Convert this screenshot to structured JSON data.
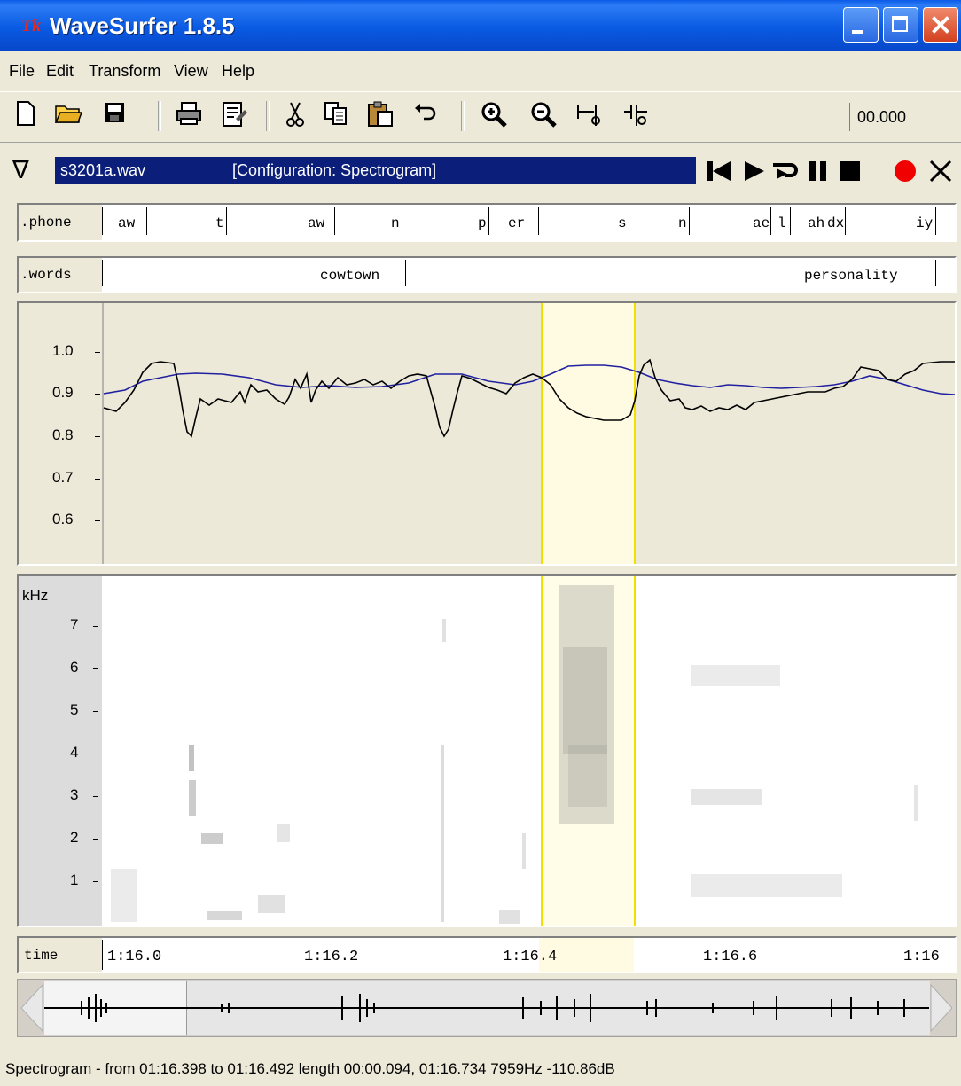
{
  "window": {
    "title": "WaveSurfer 1.8.5",
    "logo": "tk-logo"
  },
  "menu": [
    "File",
    "Edit",
    "Transform",
    "View",
    "Help"
  ],
  "toolbar": {
    "time_value": "00.000",
    "icons": [
      "new-file-icon",
      "open-folder-icon",
      "save-icon",
      "print-icon",
      "properties-icon",
      "cut-icon",
      "copy-icon",
      "paste-icon",
      "undo-icon",
      "zoom-in-icon",
      "zoom-out-icon",
      "zoom-to-selection-icon",
      "zoom-out-full-icon"
    ]
  },
  "sound": {
    "file": "s3201a.wav",
    "config": "[Configuration: Spectrogram]",
    "controls": [
      "rewind-icon",
      "play-icon",
      "play-loop-icon",
      "pause-icon",
      "stop-icon",
      "record-icon",
      "close-icon"
    ]
  },
  "phone_tier": {
    "label": ".phone",
    "labels": [
      "aw",
      "t",
      "aw",
      "n",
      "p",
      "er",
      "s",
      "n",
      "ae",
      "l",
      "ah",
      "dx",
      "iy"
    ]
  },
  "words_tier": {
    "label": ".words",
    "labels": [
      "cowtown",
      "personality"
    ]
  },
  "pitch_pane": {
    "yticks": [
      "1.0",
      "0.9",
      "0.8",
      "0.7",
      "0.6"
    ]
  },
  "spectrogram": {
    "unit": "kHz",
    "yticks": [
      "7",
      "6",
      "5",
      "4",
      "3",
      "2",
      "1"
    ]
  },
  "time_axis": {
    "label": "time",
    "ticks": [
      "1:16.0",
      "1:16.2",
      "1:16.4",
      "1:16.6",
      "1:16"
    ]
  },
  "colors": {
    "selection": "#fffbe3",
    "selection_border": "#f0e000",
    "curve_black": "#000000",
    "curve_blue": "#2020a0"
  },
  "status": "Spectrogram - from 01:16.398 to 01:16.492 length 00:00.094, 01:16.734 7959Hz -110.86dB"
}
